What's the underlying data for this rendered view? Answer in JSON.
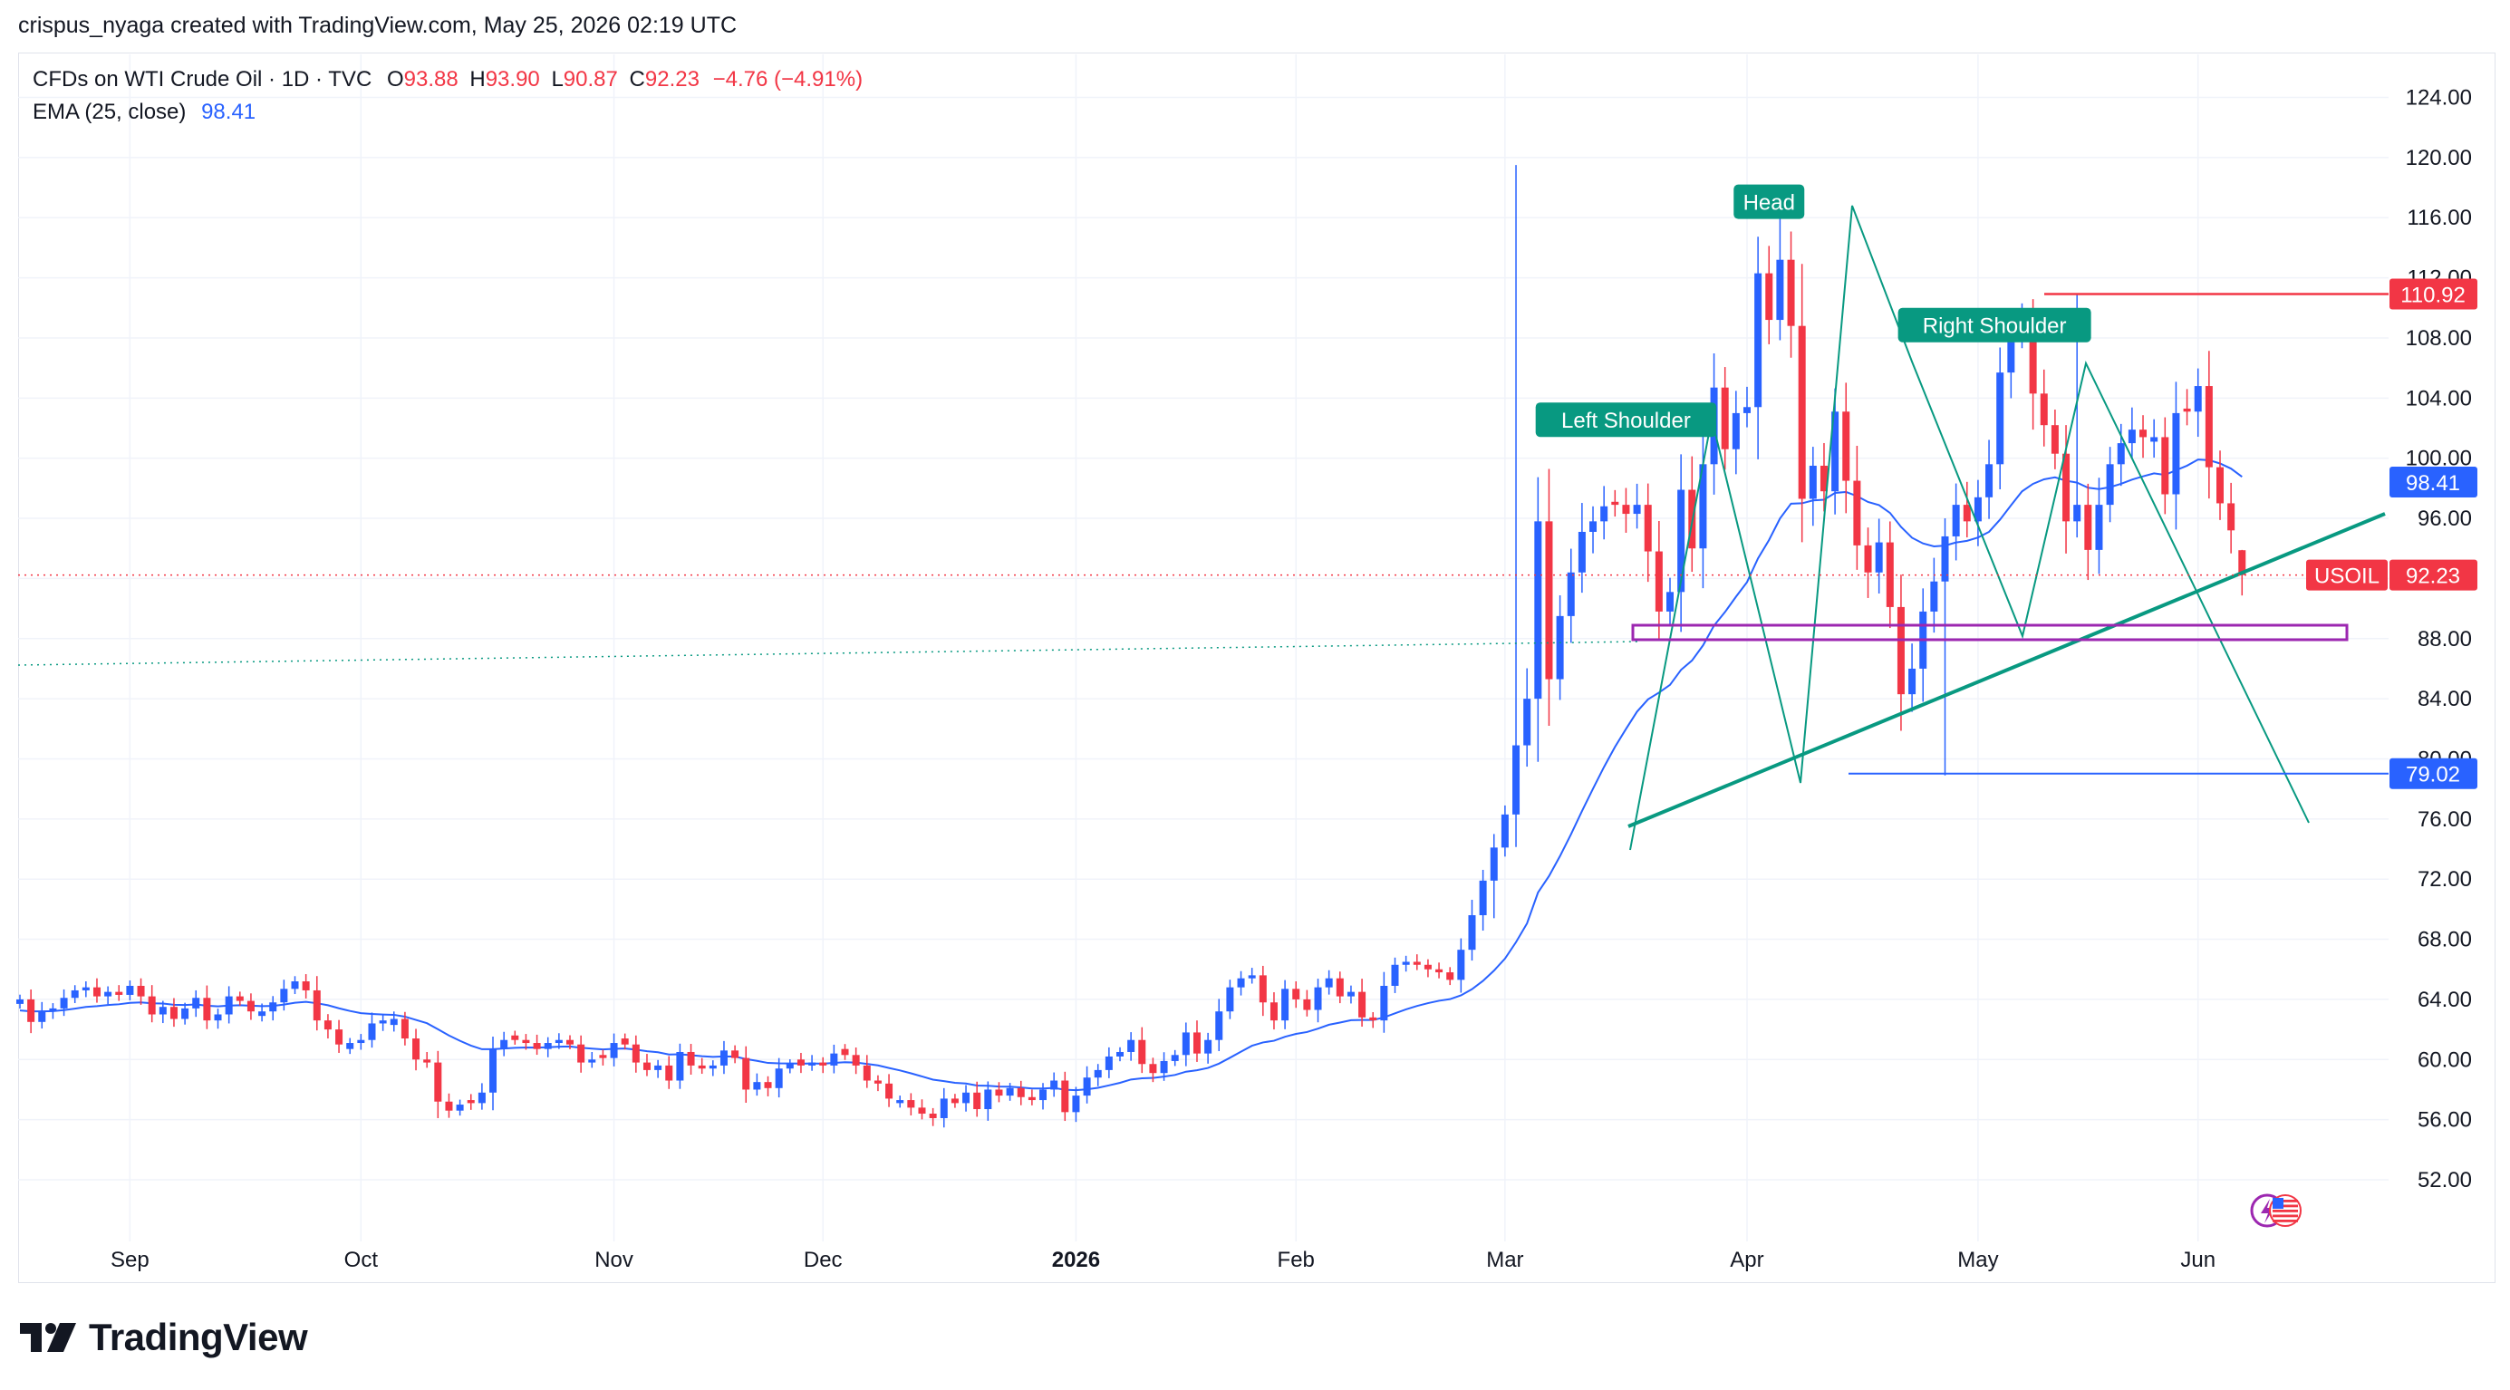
{
  "header": {
    "author_line": "crispus_nyaga created with TradingView.com, May 25, 2026 02:19 UTC"
  },
  "legend": {
    "symbol": "CFDs on WTI Crude Oil · 1D · TVC",
    "o_label": "O",
    "o_value": "93.88",
    "h_label": "H",
    "h_value": "93.90",
    "l_label": "L",
    "l_value": "90.87",
    "c_label": "C",
    "c_value": "92.23",
    "change": "−4.76 (−4.91%)",
    "ema_label": "EMA (25, close)",
    "ema_value": "98.41"
  },
  "brand": {
    "name": "TradingView"
  },
  "colors": {
    "up": "#2962ff",
    "down": "#f23645",
    "ema": "#2962ff",
    "trend": "#089981",
    "box": "#9c27b0",
    "support": "#2962ff",
    "resistance": "#f23645"
  },
  "chart_data": {
    "type": "candlestick",
    "symbol": "USOIL",
    "ylim": [
      48,
      126
    ],
    "y_ticks": [
      "52.00",
      "56.00",
      "60.00",
      "64.00",
      "68.00",
      "72.00",
      "76.00",
      "80.00",
      "84.00",
      "88.00",
      "92.00",
      "96.00",
      "100.00",
      "104.00",
      "108.00",
      "112.00",
      "116.00",
      "120.00",
      "124.00"
    ],
    "x_ticks": [
      {
        "label": "Sep",
        "i": 10
      },
      {
        "label": "Oct",
        "i": 31
      },
      {
        "label": "Nov",
        "i": 54
      },
      {
        "label": "Dec",
        "i": 73
      },
      {
        "label": "2026",
        "i": 96,
        "bold": true
      },
      {
        "label": "Feb",
        "i": 116
      },
      {
        "label": "Mar",
        "i": 135
      },
      {
        "label": "Apr",
        "i": 157
      },
      {
        "label": "May",
        "i": 178
      },
      {
        "label": "Jun",
        "i": 198
      }
    ],
    "price_labels": [
      {
        "text": "110.92",
        "value": 110.92,
        "color": "#f23645"
      },
      {
        "text": "98.41",
        "value": 98.41,
        "color": "#2962ff"
      },
      {
        "text": "92.23",
        "value": 92.23,
        "color": "#f23645",
        "tag": "USOIL"
      },
      {
        "text": "79.02",
        "value": 79.02,
        "color": "#2962ff"
      }
    ],
    "annotations": [
      {
        "text": "Left Shoulder",
        "i": 146,
        "value": 102.5
      },
      {
        "text": "Head",
        "i": 159,
        "value": 117
      },
      {
        "text": "Right Shoulder",
        "i": 179.5,
        "value": 108.8
      }
    ],
    "closes": [
      64.0,
      62.5,
      63.2,
      63.4,
      64.1,
      64.6,
      64.8,
      64.2,
      64.5,
      64.3,
      64.9,
      64.2,
      63.0,
      63.5,
      62.7,
      63.4,
      64.1,
      62.6,
      63.0,
      64.2,
      63.9,
      63.2,
      63.2,
      63.8,
      64.7,
      65.2,
      64.6,
      62.6,
      62.0,
      61.0,
      61.1,
      61.3,
      62.4,
      62.6,
      62.7,
      61.4,
      60.0,
      59.8,
      57.2,
      56.6,
      57.0,
      57.1,
      57.8,
      60.7,
      61.3,
      61.3,
      61.1,
      60.7,
      61.1,
      61.3,
      61.0,
      59.8,
      60.0,
      60.1,
      61.1,
      61.0,
      59.8,
      59.3,
      59.6,
      58.6,
      60.5,
      59.6,
      59.4,
      59.6,
      60.6,
      60.1,
      58.0,
      58.5,
      58.1,
      59.4,
      59.7,
      59.6,
      59.8,
      59.6,
      60.4,
      60.3,
      59.6,
      58.6,
      58.4,
      57.4,
      57.3,
      56.8,
      56.4,
      56.1,
      57.4,
      57.1,
      57.8,
      56.7,
      58.0,
      57.6,
      58.1,
      57.5,
      57.3,
      58.0,
      58.6,
      56.5,
      57.6,
      58.8,
      59.3,
      60.2,
      60.5,
      61.3,
      59.7,
      59.1,
      59.9,
      60.3,
      61.8,
      60.4,
      61.3,
      63.2,
      64.8,
      65.4,
      65.6,
      63.8,
      62.6,
      64.7,
      64.0,
      63.3,
      64.8,
      65.4,
      64.2,
      64.5,
      62.8,
      62.6,
      64.9,
      66.3,
      66.5,
      66.3,
      66.0,
      65.8,
      65.3,
      67.3,
      69.6,
      71.9,
      74.1,
      76.3,
      80.9,
      84.0,
      95.8,
      85.3,
      89.5,
      92.4,
      95.1,
      95.8,
      96.8,
      96.9,
      96.3,
      96.9,
      93.8,
      89.8,
      91.1,
      97.9,
      94.0,
      99.6,
      104.7,
      100.6,
      103.0,
      103.4,
      112.3,
      109.2,
      113.2,
      108.8,
      97.3,
      99.5,
      97.8,
      103.1,
      98.5,
      94.2,
      92.4,
      94.4,
      90.1,
      84.3,
      86.0,
      89.8,
      91.8,
      94.8,
      96.9,
      95.8,
      97.4,
      99.6,
      105.7,
      108.3,
      108.9,
      104.3,
      102.2,
      100.3,
      95.8,
      96.9,
      93.9,
      96.9,
      99.6,
      101.0,
      101.9,
      101.4,
      101.4,
      97.6,
      103.0,
      103.1,
      104.8,
      99.4,
      97.0,
      95.2,
      92.23
    ],
    "series": [
      {
        "name": "EMA (25, close)"
      }
    ]
  }
}
